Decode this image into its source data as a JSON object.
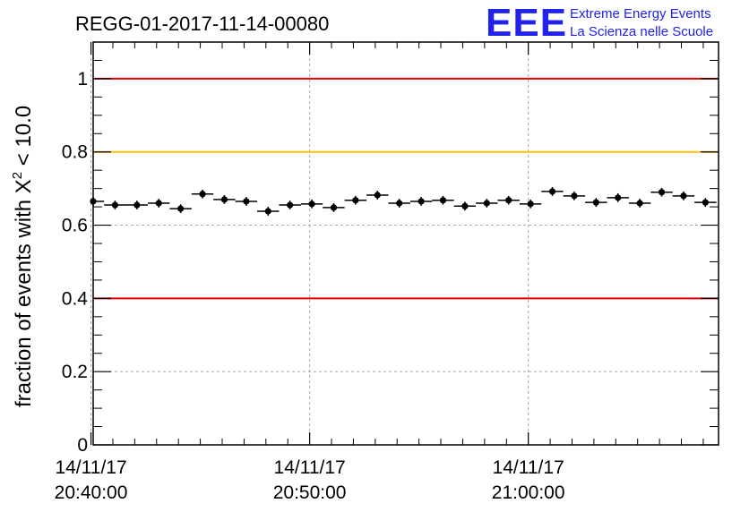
{
  "chart_data": {
    "type": "scatter",
    "title": "REGG-01-2017-11-14-00080",
    "ylabel_prefix": "fraction of events with ",
    "ylabel_symbol": "X",
    "ylabel_sup": "2",
    "ylabel_suffix": " < 10.0",
    "xlabel": "",
    "ylim": [
      0,
      1.1
    ],
    "xlim_minutes": [
      20.1,
      48.7
    ],
    "x_unit": "minutes after 20:20:00 on 14/11/17",
    "yticks": [
      {
        "value": 0,
        "label": "0"
      },
      {
        "value": 0.2,
        "label": "0.2"
      },
      {
        "value": 0.4,
        "label": "0.4"
      },
      {
        "value": 0.6,
        "label": "0.6"
      },
      {
        "value": 0.8,
        "label": "0.8"
      },
      {
        "value": 1,
        "label": "1"
      }
    ],
    "xticks": [
      {
        "value": 20,
        "date": "14/11/17",
        "time": "20:40:00"
      },
      {
        "value": 30,
        "date": "14/11/17",
        "time": "20:50:00"
      },
      {
        "value": 40,
        "date": "14/11/17",
        "time": "21:00:00"
      }
    ],
    "grid": true,
    "bin_width": 1.0,
    "x": [
      20.1,
      21.1,
      22.1,
      23.1,
      24.1,
      25.1,
      26.1,
      27.1,
      28.1,
      29.1,
      30.1,
      31.1,
      32.1,
      33.1,
      34.1,
      35.1,
      36.1,
      37.1,
      38.1,
      39.1,
      40.1,
      41.1,
      42.1,
      43.1,
      44.1,
      45.1,
      46.1,
      47.1,
      48.1
    ],
    "y": [
      0.665,
      0.655,
      0.655,
      0.66,
      0.645,
      0.685,
      0.67,
      0.665,
      0.638,
      0.655,
      0.658,
      0.648,
      0.668,
      0.682,
      0.66,
      0.665,
      0.668,
      0.652,
      0.66,
      0.668,
      0.658,
      0.692,
      0.68,
      0.662,
      0.675,
      0.66,
      0.69,
      0.68,
      0.662
    ],
    "yerr": 0.012,
    "reference_lines": [
      {
        "value": 1.0,
        "color": "#e00000"
      },
      {
        "value": 0.8,
        "color": "#ffc000"
      },
      {
        "value": 0.4,
        "color": "#e00000"
      }
    ]
  },
  "logo": {
    "mark": "EEE",
    "line1": "Extreme Energy Events",
    "line2": "La Scienza nelle Scuole"
  }
}
